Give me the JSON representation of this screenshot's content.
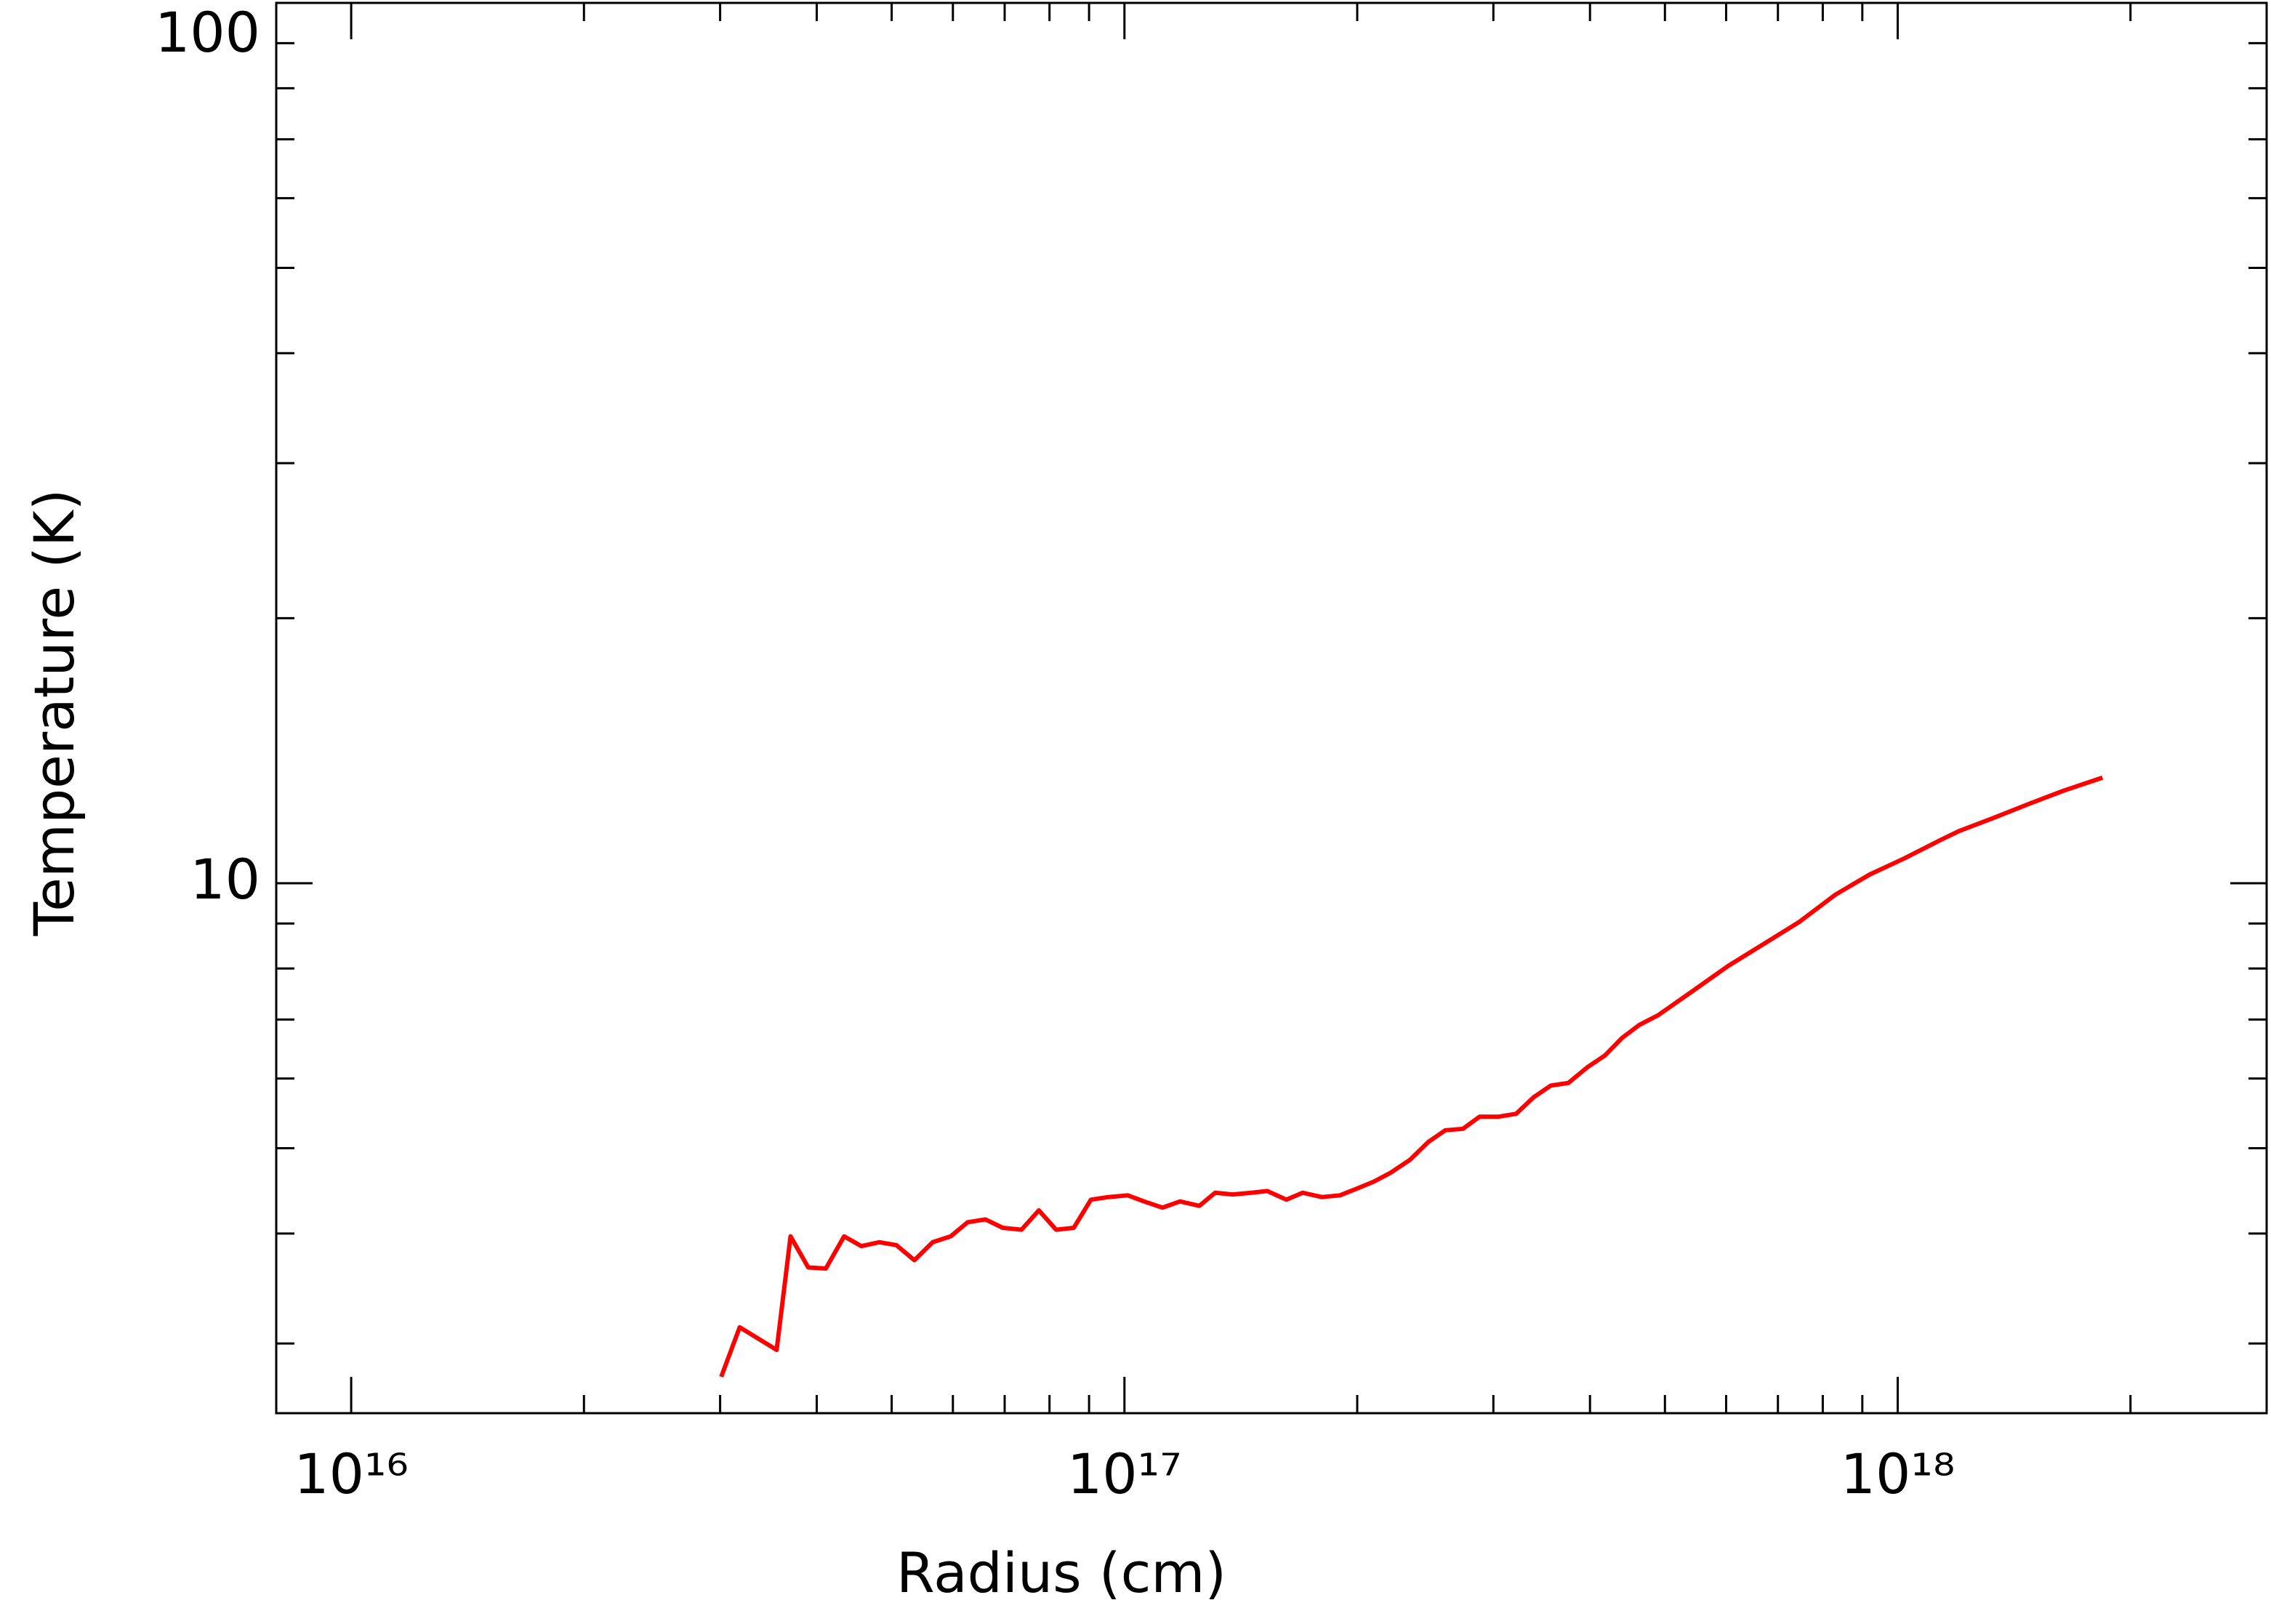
{
  "chart_data": {
    "type": "line",
    "xlabel": "Radius (cm)",
    "ylabel": "Temperature (K)",
    "xscale": "log",
    "yscale": "log",
    "xlim": [
      8000000000000000.0,
      3e+18
    ],
    "ylim": [
      2.5,
      100
    ],
    "xticks": [
      {
        "value": 1e+16,
        "label": "10¹⁶"
      },
      {
        "value": 1e+17,
        "label": "10¹⁷"
      },
      {
        "value": 1e+18,
        "label": "10¹⁸"
      }
    ],
    "xminor_ticks": [
      2e+16,
      3e+16,
      4e+16,
      5e+16,
      6e+16,
      7e+16,
      8e+16,
      9e+16,
      2e+17,
      3e+17,
      4e+17,
      5e+17,
      6e+17,
      7e+17,
      8e+17,
      9e+17,
      2e+18
    ],
    "yticks": [
      10,
      100
    ],
    "yminor_ticks": [
      3,
      4,
      5,
      6,
      7,
      8,
      9,
      20,
      30,
      40,
      50,
      60,
      70,
      80,
      90
    ],
    "series": [
      {
        "color": "#ff0000",
        "x": [
          3.01e+16,
          3.18e+16,
          3.55e+16,
          3.7e+16,
          3.9e+16,
          4.11e+16,
          4.34e+16,
          4.57e+16,
          4.82e+16,
          5.07e+16,
          5.35e+16,
          5.65e+16,
          5.96e+16,
          6.27e+16,
          6.61e+16,
          6.96e+16,
          7.36e+16,
          7.75e+16,
          8.16e+16,
          8.6e+16,
          9.05e+16,
          9.53e+16,
          1.01e+17,
          1.06e+17,
          1.12e+17,
          1.18e+17,
          1.25e+17,
          1.31e+17,
          1.38e+17,
          1.46e+17,
          1.53e+17,
          1.62e+17,
          1.7e+17,
          1.8e+17,
          1.9e+17,
          2e+17,
          2.1e+17,
          2.21e+17,
          2.34e+17,
          2.47e+17,
          2.6e+17,
          2.74e+17,
          2.88e+17,
          3.05e+17,
          3.21e+17,
          3.38e+17,
          3.56e+17,
          3.75e+17,
          3.97e+17,
          4.18e+17,
          4.4e+17,
          4.63e+17,
          4.9e+17,
          5.44e+17,
          6.03e+17,
          6.71e+17,
          7.45e+17,
          8.3e+17,
          9.2e+17,
          1.02e+18,
          1.13e+18,
          1.2e+18,
          1.33e+18,
          1.48e+18,
          1.64e+18,
          1.84e+18
        ],
        "values": [
          2.75,
          3.13,
          2.95,
          3.97,
          3.66,
          3.65,
          3.97,
          3.87,
          3.91,
          3.88,
          3.73,
          3.91,
          3.97,
          4.12,
          4.15,
          4.06,
          4.04,
          4.25,
          4.04,
          4.06,
          4.37,
          4.4,
          4.42,
          4.35,
          4.28,
          4.35,
          4.3,
          4.45,
          4.43,
          4.45,
          4.47,
          4.37,
          4.45,
          4.4,
          4.42,
          4.5,
          4.58,
          4.69,
          4.85,
          5.08,
          5.24,
          5.26,
          5.43,
          5.43,
          5.47,
          5.71,
          5.89,
          5.93,
          6.18,
          6.37,
          6.67,
          6.9,
          7.08,
          7.55,
          8.05,
          8.53,
          9.03,
          9.7,
          10.23,
          10.67,
          11.17,
          11.46,
          11.86,
          12.31,
          12.74,
          13.18
        ]
      }
    ]
  }
}
